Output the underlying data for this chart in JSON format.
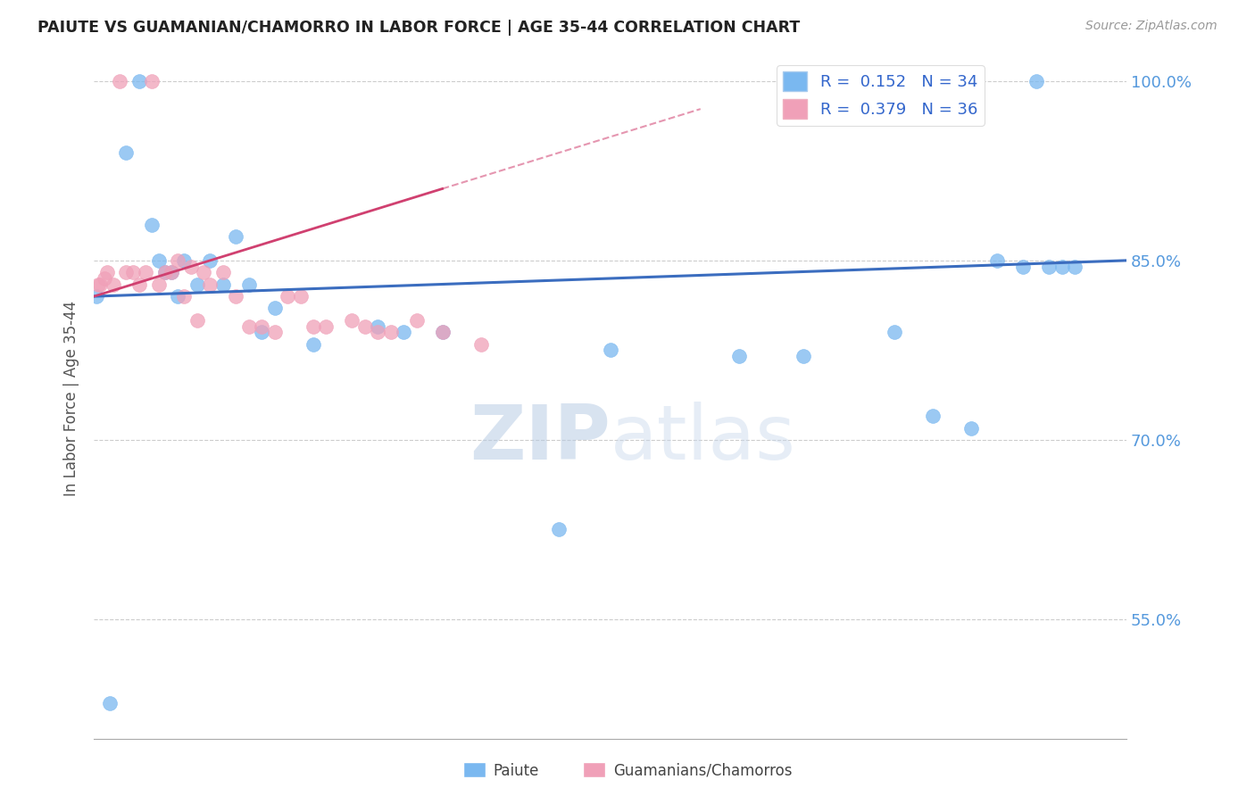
{
  "title": "PAIUTE VS GUAMANIAN/CHAMORRO IN LABOR FORCE | AGE 35-44 CORRELATION CHART",
  "source": "Source: ZipAtlas.com",
  "ylabel": "In Labor Force | Age 35-44",
  "xlim": [
    0.0,
    80.0
  ],
  "ylim": [
    45.0,
    102.0
  ],
  "yticks": [
    55.0,
    70.0,
    85.0,
    100.0
  ],
  "paiute_color": "#7ab8f0",
  "chamorro_color": "#f0a0b8",
  "trend_paiute_color": "#3b6dbf",
  "trend_chamorro_color": "#d04070",
  "background_color": "#ffffff",
  "watermark_zip": "ZIP",
  "watermark_atlas": "atlas",
  "paiute_x": [
    0.2,
    1.2,
    2.5,
    3.5,
    4.5,
    5.0,
    5.5,
    6.0,
    6.5,
    7.0,
    8.0,
    9.0,
    10.0,
    11.0,
    12.0,
    13.0,
    14.0,
    17.0,
    22.0,
    24.0,
    27.0,
    36.0,
    40.0,
    50.0,
    55.0,
    62.0,
    65.0,
    68.0,
    70.0,
    72.0,
    73.0,
    74.0,
    75.0,
    76.0
  ],
  "paiute_y": [
    82.0,
    48.0,
    94.0,
    100.0,
    88.0,
    85.0,
    84.0,
    84.0,
    82.0,
    85.0,
    83.0,
    85.0,
    83.0,
    87.0,
    83.0,
    79.0,
    81.0,
    78.0,
    79.5,
    79.0,
    79.0,
    62.5,
    77.5,
    77.0,
    77.0,
    79.0,
    72.0,
    71.0,
    85.0,
    84.5,
    100.0,
    84.5,
    84.5,
    84.5
  ],
  "chamorro_x": [
    0.3,
    0.5,
    0.8,
    1.0,
    1.5,
    2.0,
    2.5,
    3.0,
    3.5,
    4.0,
    4.5,
    5.0,
    5.5,
    6.0,
    6.5,
    7.0,
    7.5,
    8.0,
    8.5,
    9.0,
    10.0,
    11.0,
    12.0,
    13.0,
    14.0,
    15.0,
    16.0,
    17.0,
    18.0,
    20.0,
    21.0,
    22.0,
    23.0,
    25.0,
    27.0,
    30.0
  ],
  "chamorro_y": [
    83.0,
    83.0,
    83.5,
    84.0,
    83.0,
    100.0,
    84.0,
    84.0,
    83.0,
    84.0,
    100.0,
    83.0,
    84.0,
    84.0,
    85.0,
    82.0,
    84.5,
    80.0,
    84.0,
    83.0,
    84.0,
    82.0,
    79.5,
    79.5,
    79.0,
    82.0,
    82.0,
    79.5,
    79.5,
    80.0,
    79.5,
    79.0,
    79.0,
    80.0,
    79.0,
    78.0
  ]
}
